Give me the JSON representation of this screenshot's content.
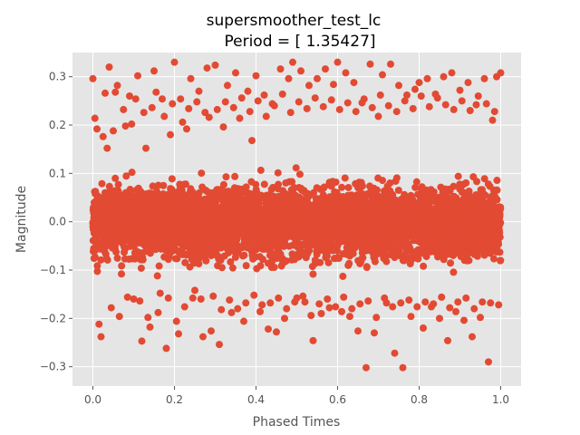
{
  "chart_data": {
    "type": "scatter",
    "title": "supersmoother_test_lc",
    "subtitle": "Period = [ 1.35427]",
    "xlabel": "Phased Times",
    "ylabel": "Magnitude",
    "xlim": [
      -0.05,
      1.05
    ],
    "ylim": [
      -0.34,
      0.35
    ],
    "x_ticks": [
      0.0,
      0.2,
      0.4,
      0.6,
      0.8,
      1.0
    ],
    "x_tick_labels": [
      "0.0",
      "0.2",
      "0.4",
      "0.6",
      "0.8",
      "1.0"
    ],
    "y_ticks": [
      -0.3,
      -0.2,
      -0.1,
      0.0,
      0.1,
      0.2,
      0.3
    ],
    "y_tick_labels": [
      "−0.3",
      "−0.2",
      "−0.1",
      "0.0",
      "0.1",
      "0.2",
      "0.3"
    ],
    "grid": true,
    "legend": "none",
    "colors": {
      "points": "#e24a33",
      "plot_background": "#e5e5e5",
      "grid": "#ffffff"
    },
    "series": [
      {
        "x": [
          0.0,
          0.01,
          0.02,
          0.03,
          0.04,
          0.05,
          0.06,
          0.07,
          0.08,
          0.09,
          0.1,
          0.11,
          0.12,
          0.13,
          0.14,
          0.15,
          0.16,
          0.17,
          0.18,
          0.19,
          0.2,
          0.21,
          0.22,
          0.23,
          0.24,
          0.25,
          0.26,
          0.27,
          0.28,
          0.29,
          0.3,
          0.31,
          0.32,
          0.33,
          0.34,
          0.35,
          0.36,
          0.37,
          0.38,
          0.39,
          0.4,
          0.41,
          0.42,
          0.43,
          0.44,
          0.45,
          0.46,
          0.47,
          0.48,
          0.49,
          0.5,
          0.51,
          0.52,
          0.53,
          0.54,
          0.55,
          0.56,
          0.57,
          0.58,
          0.59,
          0.6,
          0.61,
          0.62,
          0.63,
          0.64,
          0.65,
          0.66,
          0.67,
          0.68,
          0.69,
          0.7,
          0.71,
          0.72,
          0.73,
          0.74,
          0.75,
          0.76,
          0.77,
          0.78,
          0.79,
          0.8,
          0.81,
          0.82,
          0.83,
          0.84,
          0.85,
          0.86,
          0.87,
          0.88,
          0.89,
          0.9,
          0.91,
          0.92,
          0.93,
          0.94,
          0.95,
          0.96,
          0.97,
          0.98,
          0.99,
          1.0,
          0.005,
          0.015,
          0.025,
          0.035,
          0.045,
          0.055,
          0.065,
          0.075,
          0.085,
          0.095,
          0.105,
          0.115,
          0.125,
          0.135,
          0.145,
          0.155,
          0.165,
          0.175,
          0.185,
          0.195,
          0.205,
          0.215,
          0.225,
          0.235,
          0.245,
          0.255,
          0.265,
          0.275,
          0.285,
          0.295,
          0.305,
          0.315,
          0.325,
          0.335,
          0.345,
          0.355,
          0.365,
          0.375,
          0.385,
          0.395,
          0.405,
          0.415,
          0.425,
          0.435,
          0.445,
          0.455,
          0.465,
          0.475,
          0.485,
          0.495,
          0.505,
          0.515,
          0.525,
          0.535,
          0.545,
          0.555,
          0.565,
          0.575,
          0.585,
          0.595,
          0.605,
          0.615,
          0.625,
          0.635,
          0.645,
          0.655,
          0.665,
          0.675,
          0.685,
          0.695,
          0.705,
          0.715,
          0.725,
          0.735,
          0.745,
          0.755,
          0.765,
          0.775,
          0.785,
          0.795,
          0.805,
          0.815,
          0.825,
          0.835,
          0.845,
          0.855,
          0.865,
          0.875,
          0.885,
          0.895,
          0.905,
          0.915,
          0.925,
          0.935,
          0.945,
          0.955,
          0.965,
          0.975,
          0.985,
          0.995
        ],
        "y": [
          0.296,
          0.192,
          -0.238,
          0.266,
          0.32,
          0.188,
          0.282,
          -0.108,
          0.198,
          0.26,
          -0.16,
          0.302,
          -0.247,
          0.152,
          -0.218,
          0.312,
          -0.188,
          0.254,
          -0.262,
          0.18,
          0.33,
          -0.232,
          0.206,
          0.192,
          0.296,
          -0.142,
          0.27,
          -0.238,
          0.318,
          -0.226,
          0.324,
          -0.254,
          0.196,
          0.282,
          -0.188,
          0.308,
          0.214,
          -0.206,
          0.27,
          0.168,
          0.302,
          -0.186,
          0.262,
          -0.222,
          0.244,
          -0.228,
          0.316,
          -0.2,
          0.296,
          0.33,
          -0.158,
          0.312,
          -0.166,
          0.282,
          -0.246,
          0.296,
          -0.19,
          0.316,
          -0.178,
          0.284,
          0.33,
          -0.186,
          0.308,
          -0.196,
          0.288,
          -0.226,
          0.246,
          -0.302,
          0.326,
          -0.23,
          0.218,
          0.304,
          -0.168,
          0.326,
          -0.272,
          0.282,
          -0.302,
          0.262,
          -0.196,
          0.274,
          0.288,
          -0.22,
          0.296,
          -0.176,
          0.264,
          -0.2,
          0.3,
          -0.246,
          0.308,
          -0.186,
          0.272,
          -0.204,
          0.288,
          -0.238,
          0.242,
          -0.198,
          0.296,
          -0.29,
          0.21,
          0.3,
          0.308,
          0.214,
          -0.212,
          0.176,
          0.152,
          -0.178,
          0.268,
          -0.196,
          0.232,
          -0.156,
          0.202,
          0.254,
          -0.164,
          0.226,
          -0.198,
          0.236,
          0.268,
          -0.148,
          0.218,
          -0.158,
          0.244,
          -0.206,
          0.254,
          -0.176,
          0.234,
          -0.158,
          0.248,
          -0.16,
          0.226,
          0.216,
          -0.154,
          0.232,
          -0.182,
          0.248,
          -0.162,
          0.236,
          -0.18,
          0.256,
          -0.168,
          0.228,
          -0.152,
          0.25,
          -0.172,
          0.218,
          -0.168,
          0.24,
          -0.158,
          0.264,
          -0.18,
          0.226,
          -0.166,
          0.248,
          -0.154,
          0.234,
          -0.194,
          0.256,
          -0.17,
          0.238,
          -0.16,
          0.252,
          -0.176,
          0.232,
          -0.156,
          0.246,
          -0.18,
          0.228,
          -0.17,
          0.254,
          -0.164,
          0.236,
          -0.198,
          0.262,
          -0.158,
          0.24,
          -0.176,
          0.228,
          -0.168,
          0.25,
          -0.162,
          0.234,
          -0.176,
          0.26,
          -0.166,
          0.238,
          -0.17,
          0.256,
          -0.156,
          0.242,
          -0.178,
          0.232,
          -0.166,
          0.25,
          -0.158,
          0.23,
          -0.18,
          0.26,
          -0.166,
          0.244,
          -0.168,
          0.228,
          -0.172
        ]
      }
    ],
    "dense_band": {
      "description_free_values": [
        -0.16,
        0.2
      ],
      "x_range": [
        0.0,
        1.0
      ],
      "count": 4200
    }
  }
}
